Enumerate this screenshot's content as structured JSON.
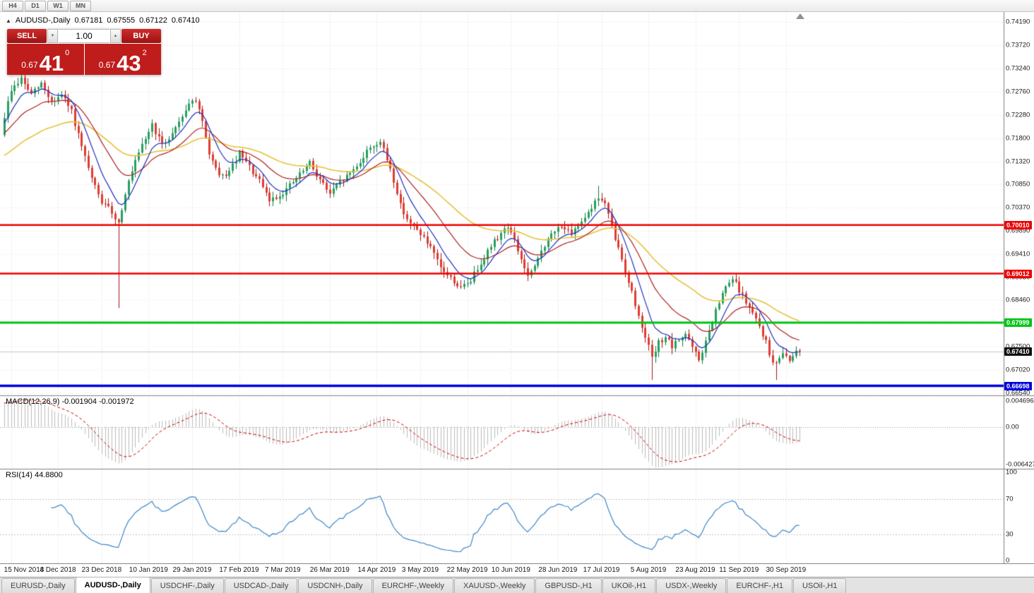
{
  "toolbar": {
    "timeframes": [
      "H4",
      "D1",
      "W1",
      "MN"
    ]
  },
  "symbol_info": {
    "collapse_icon": "▲",
    "symbol": "AUDUSD-,Daily",
    "open": "0.67181",
    "high": "0.67555",
    "low": "0.67122",
    "close": "0.67410"
  },
  "one_click": {
    "sell_label": "SELL",
    "buy_label": "BUY",
    "volume": "1.00",
    "dec_icon": "▼",
    "inc_icon": "▲",
    "bid": {
      "prefix": "0.67",
      "big": "41",
      "sup": "0"
    },
    "ask": {
      "prefix": "0.67",
      "big": "43",
      "sup": "2"
    }
  },
  "panes": {
    "macd": {
      "title": "MACD(12,26,9)",
      "values": "-0.001904 -0.001972",
      "axis_labels": [
        "0.004696",
        "0.00",
        "-0.006427"
      ]
    },
    "rsi": {
      "title": "RSI(14)",
      "value": "44.8800",
      "axis_labels": [
        "100",
        "70",
        "30",
        "0"
      ]
    }
  },
  "price_axis": {
    "labels": [
      "0.74190",
      "0.73720",
      "0.73240",
      "0.72760",
      "0.72280",
      "0.71800",
      "0.71320",
      "0.70850",
      "0.70370",
      "0.69890",
      "0.69410",
      "0.68930",
      "0.68460",
      "0.67980",
      "0.67500",
      "0.67020",
      "0.66540"
    ]
  },
  "levels": [
    {
      "price": 0.7001,
      "label": "0.70010",
      "color": "#ee0000",
      "width": 2.5
    },
    {
      "price": 0.69012,
      "label": "0.69012",
      "color": "#ee0000",
      "width": 2.5
    },
    {
      "price": 0.67999,
      "label": "0.67999",
      "color": "#00c414",
      "width": 3
    },
    {
      "price": 0.66698,
      "label": "0.66698",
      "color": "#0000dd",
      "width": 3.5
    }
  ],
  "current_price": {
    "price": 0.6741,
    "label": "0.67410",
    "color": "#111111"
  },
  "time_axis": [
    {
      "label": "15 Nov 2018",
      "i": 2
    },
    {
      "label": "4 Dec 2018",
      "i": 16
    },
    {
      "label": "23 Dec 2018",
      "i": 29
    },
    {
      "label": "10 Jan 2019",
      "i": 43
    },
    {
      "label": "29 Jan 2019",
      "i": 56
    },
    {
      "label": "17 Feb 2019",
      "i": 70
    },
    {
      "label": "7 Mar 2019",
      "i": 83
    },
    {
      "label": "26 Mar 2019",
      "i": 97
    },
    {
      "label": "14 Apr 2019",
      "i": 111
    },
    {
      "label": "3 May 2019",
      "i": 124
    },
    {
      "label": "22 May 2019",
      "i": 138
    },
    {
      "label": "10 Jun 2019",
      "i": 151
    },
    {
      "label": "28 Jun 2019",
      "i": 165
    },
    {
      "label": "17 Jul 2019",
      "i": 178
    },
    {
      "label": "5 Aug 2019",
      "i": 192
    },
    {
      "label": "23 Aug 2019",
      "i": 206
    },
    {
      "label": "11 Sep 2019",
      "i": 219
    },
    {
      "label": "30 Sep 2019",
      "i": 233
    }
  ],
  "tabs": [
    {
      "label": "EURUSD-,Daily",
      "active": false
    },
    {
      "label": "AUDUSD-,Daily",
      "active": true
    },
    {
      "label": "USDCHF-,Daily",
      "active": false
    },
    {
      "label": "USDCAD-,Daily",
      "active": false
    },
    {
      "label": "USDCNH-,Daily",
      "active": false
    },
    {
      "label": "EURCHF-,Weekly",
      "active": false
    },
    {
      "label": "XAUUSD-,Weekly",
      "active": false
    },
    {
      "label": "GBPUSD-,H1",
      "active": false
    },
    {
      "label": "UKOil-,H1",
      "active": false
    },
    {
      "label": "USDX-,Weekly",
      "active": false
    },
    {
      "label": "EURCHF-,H1",
      "active": false
    },
    {
      "label": "USOil-,H1",
      "active": false
    }
  ],
  "chart_data": {
    "type": "candlestick",
    "symbol": "AUDUSD",
    "timeframe": "Daily",
    "bar_count": 238,
    "close_keypoints": [
      [
        0,
        0.7225
      ],
      [
        2,
        0.728
      ],
      [
        5,
        0.7302
      ],
      [
        8,
        0.727
      ],
      [
        11,
        0.7292
      ],
      [
        14,
        0.7255
      ],
      [
        17,
        0.7268
      ],
      [
        20,
        0.7235
      ],
      [
        23,
        0.716
      ],
      [
        26,
        0.7095
      ],
      [
        29,
        0.7048
      ],
      [
        32,
        0.7028
      ],
      [
        34,
        0.7005
      ],
      [
        36,
        0.7068
      ],
      [
        39,
        0.713
      ],
      [
        42,
        0.718
      ],
      [
        44,
        0.7208
      ],
      [
        47,
        0.7165
      ],
      [
        50,
        0.719
      ],
      [
        53,
        0.7228
      ],
      [
        56,
        0.7262
      ],
      [
        58,
        0.724
      ],
      [
        61,
        0.715
      ],
      [
        64,
        0.7098
      ],
      [
        67,
        0.711
      ],
      [
        70,
        0.7148
      ],
      [
        73,
        0.712
      ],
      [
        76,
        0.709
      ],
      [
        79,
        0.7052
      ],
      [
        82,
        0.7062
      ],
      [
        85,
        0.7082
      ],
      [
        88,
        0.7105
      ],
      [
        91,
        0.7128
      ],
      [
        94,
        0.7095
      ],
      [
        97,
        0.7065
      ],
      [
        100,
        0.7088
      ],
      [
        103,
        0.7108
      ],
      [
        106,
        0.7132
      ],
      [
        109,
        0.7162
      ],
      [
        112,
        0.7172
      ],
      [
        115,
        0.7118
      ],
      [
        118,
        0.7042
      ],
      [
        121,
        0.7002
      ],
      [
        124,
        0.6985
      ],
      [
        127,
        0.6952
      ],
      [
        130,
        0.6912
      ],
      [
        133,
        0.6892
      ],
      [
        136,
        0.687
      ],
      [
        139,
        0.6888
      ],
      [
        142,
        0.6925
      ],
      [
        145,
        0.6958
      ],
      [
        148,
        0.6985
      ],
      [
        150,
        0.7
      ],
      [
        152,
        0.6968
      ],
      [
        154,
        0.693
      ],
      [
        156,
        0.6895
      ],
      [
        158,
        0.6912
      ],
      [
        160,
        0.695
      ],
      [
        163,
        0.698
      ],
      [
        166,
        0.7002
      ],
      [
        169,
        0.6978
      ],
      [
        172,
        0.7012
      ],
      [
        175,
        0.7038
      ],
      [
        177,
        0.7058
      ],
      [
        179,
        0.7045
      ],
      [
        181,
        0.6995
      ],
      [
        183,
        0.6952
      ],
      [
        185,
        0.6908
      ],
      [
        187,
        0.6862
      ],
      [
        189,
        0.6812
      ],
      [
        191,
        0.6775
      ],
      [
        193,
        0.6725
      ],
      [
        195,
        0.6758
      ],
      [
        197,
        0.6772
      ],
      [
        199,
        0.6748
      ],
      [
        201,
        0.6765
      ],
      [
        203,
        0.6778
      ],
      [
        205,
        0.6748
      ],
      [
        207,
        0.6722
      ],
      [
        209,
        0.676
      ],
      [
        211,
        0.6802
      ],
      [
        213,
        0.6842
      ],
      [
        215,
        0.6872
      ],
      [
        217,
        0.689
      ],
      [
        219,
        0.6868
      ],
      [
        221,
        0.6842
      ],
      [
        223,
        0.6818
      ],
      [
        225,
        0.6792
      ],
      [
        227,
        0.676
      ],
      [
        228,
        0.6732
      ],
      [
        230,
        0.6712
      ],
      [
        232,
        0.6742
      ],
      [
        234,
        0.6722
      ],
      [
        236,
        0.6748
      ],
      [
        237,
        0.6741
      ]
    ],
    "low_overrides": {
      "34": 0.683,
      "193": 0.6682,
      "230": 0.6682
    },
    "high_overrides": {
      "177": 0.7082
    },
    "noise": 0.0006,
    "seed": 9,
    "moving_averages": [
      {
        "period": 8,
        "color": "#2030c0"
      },
      {
        "period": 21,
        "color": "#b02020"
      },
      {
        "period": 50,
        "color": "#e6c23c"
      }
    ],
    "candle_colors": {
      "up_fill": "#25a05f",
      "up_edge": "#0f7a42",
      "down_fill": "#e03b30",
      "down_edge": "#a31515"
    },
    "macd": {
      "fast": 12,
      "slow": 26,
      "signal": 9,
      "scale_max": 0.004696,
      "scale_min": -0.006427,
      "hist_color": "#bbbbbb",
      "signal_color": "#cc0000"
    },
    "rsi": {
      "period": 14,
      "color": "#3d85c8",
      "levels": [
        70,
        30
      ]
    },
    "grid_color": "#dcdcdc",
    "bid_line": {
      "price": 0.6741,
      "color": "#c4c4c4"
    }
  }
}
